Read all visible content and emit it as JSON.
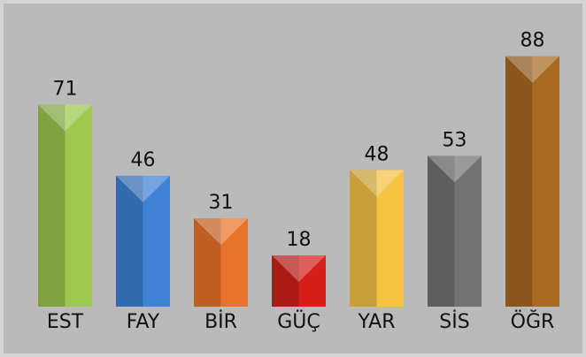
{
  "chart_data": {
    "type": "bar",
    "categories": [
      "EST",
      "FAY",
      "BİR",
      "GÜÇ",
      "YAR",
      "SİS",
      "ÖĞR"
    ],
    "values": [
      71,
      46,
      31,
      18,
      48,
      53,
      88
    ],
    "colors": [
      "#9cc84e",
      "#3f82d6",
      "#e8742a",
      "#d41f1a",
      "#f5c242",
      "#737373",
      "#a96a22"
    ]
  }
}
